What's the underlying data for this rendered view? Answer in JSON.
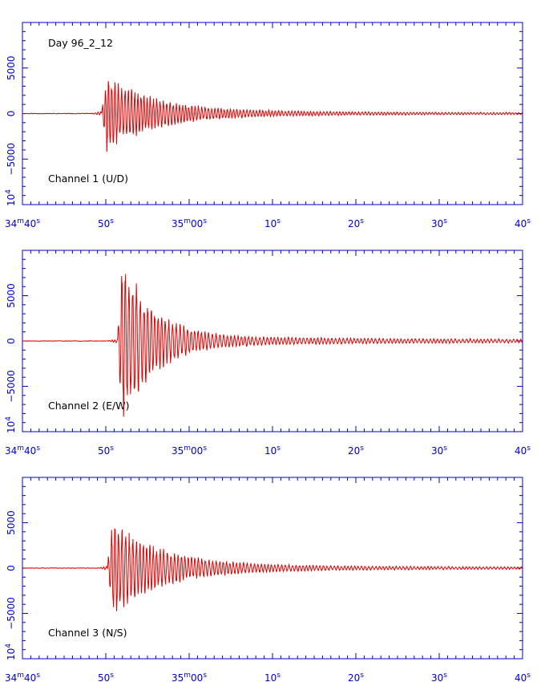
{
  "figure": {
    "title": "Day 96_2_12",
    "colors": {
      "axis": "#0000cc",
      "trace": "#dd0000",
      "text": "#000000"
    }
  },
  "chart_data": [
    {
      "type": "line",
      "label": "Channel 1 (U/D)",
      "xlim": [
        0,
        60
      ],
      "ylim": [
        -10000,
        10000
      ],
      "y_ticks": [
        -5000,
        0,
        5000
      ],
      "y_tick_labels": [
        "−5000",
        "0",
        "5000"
      ],
      "y_exponent_label": "10",
      "y_exponent_sup": "4",
      "x_ticks": [
        0,
        10,
        20,
        30,
        40,
        50,
        60
      ],
      "x_tick_labels": [
        {
          "main": "34",
          "sup": "m",
          "main2": "40",
          "sup2": "s"
        },
        {
          "main": "50",
          "sup": "s"
        },
        {
          "main": "35",
          "sup": "m",
          "main2": "00",
          "sup2": "s"
        },
        {
          "main": "10",
          "sup": "s"
        },
        {
          "main": "20",
          "sup": "s"
        },
        {
          "main": "30",
          "sup": "s"
        },
        {
          "main": "40",
          "sup": "s"
        }
      ],
      "signal": {
        "onset": 9.5,
        "peak_amplitude": 3600,
        "decay": 0.17,
        "freq": 2.6,
        "coda": 250,
        "noise": 60,
        "seed": 11
      }
    },
    {
      "type": "line",
      "label": "Channel 2 (E/W)",
      "xlim": [
        0,
        60
      ],
      "ylim": [
        -10000,
        10000
      ],
      "y_ticks": [
        -5000,
        0,
        5000
      ],
      "y_tick_labels": [
        "−5000",
        "0",
        "5000"
      ],
      "y_exponent_label": "10",
      "y_exponent_sup": "4",
      "x_ticks": [
        0,
        10,
        20,
        30,
        40,
        50,
        60
      ],
      "x_tick_labels": [
        {
          "main": "34",
          "sup": "m",
          "main2": "40",
          "sup2": "s"
        },
        {
          "main": "50",
          "sup": "s"
        },
        {
          "main": "35",
          "sup": "m",
          "main2": "00",
          "sup2": "s"
        },
        {
          "main": "10",
          "sup": "s"
        },
        {
          "main": "20",
          "sup": "s"
        },
        {
          "main": "30",
          "sup": "s"
        },
        {
          "main": "40",
          "sup": "s"
        }
      ],
      "signal": {
        "onset": 11.4,
        "peak_amplitude": 8800,
        "decay": 0.27,
        "freq": 2.3,
        "coda": 450,
        "noise": 50,
        "seed": 23
      }
    },
    {
      "type": "line",
      "label": "Channel 3 (N/S)",
      "xlim": [
        0,
        60
      ],
      "ylim": [
        -10000,
        10000
      ],
      "y_ticks": [
        -5000,
        0,
        5000
      ],
      "y_tick_labels": [
        "−5000",
        "0",
        "5000"
      ],
      "y_exponent_label": "10",
      "y_exponent_sup": "4",
      "x_ticks": [
        0,
        10,
        20,
        30,
        40,
        50,
        60
      ],
      "x_tick_labels": [
        {
          "main": "34",
          "sup": "m",
          "main2": "40",
          "sup2": "s"
        },
        {
          "main": "50",
          "sup": "s"
        },
        {
          "main": "35",
          "sup": "m",
          "main2": "00",
          "sup2": "s"
        },
        {
          "main": "10",
          "sup": "s"
        },
        {
          "main": "20",
          "sup": "s"
        },
        {
          "main": "30",
          "sup": "s"
        },
        {
          "main": "40",
          "sup": "s"
        }
      ],
      "signal": {
        "onset": 10.2,
        "peak_amplitude": 4600,
        "decay": 0.17,
        "freq": 2.4,
        "coda": 300,
        "noise": 50,
        "seed": 37
      }
    }
  ]
}
